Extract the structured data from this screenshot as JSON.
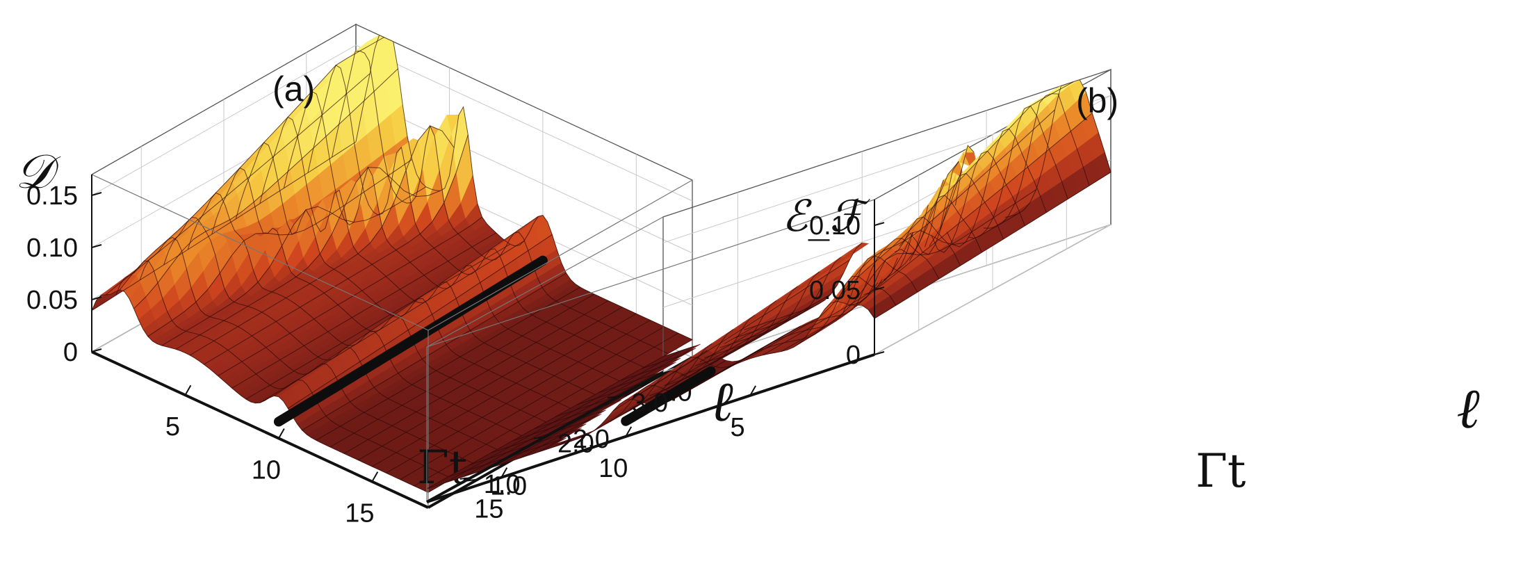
{
  "chart_data": [
    {
      "type": "surface3d",
      "panel": "(a)",
      "zlabel": "𝒟",
      "xlabel": "Γt",
      "ylabel": "ℓ",
      "x_ticks": [
        "5",
        "10",
        "15"
      ],
      "x_tick_values": [
        5,
        10,
        15
      ],
      "y_ticks": [
        "1.0",
        "2.0",
        "3.0"
      ],
      "y_tick_values": [
        1.0,
        2.0,
        3.0
      ],
      "z_ticks": [
        "0",
        "0.05",
        "0.10",
        "0.15"
      ],
      "z_tick_values": [
        0,
        0.05,
        0.1,
        0.15
      ],
      "xlim": [
        0,
        18
      ],
      "ylim": [
        0.4,
        3.6
      ],
      "zlim": [
        0,
        0.17
      ],
      "peak_value": 0.17,
      "highlight_line_x": 10,
      "gaps": false,
      "colormap": [
        "#5a1414",
        "#9a2a1c",
        "#d0461e",
        "#ec8a2a",
        "#f6cf45",
        "#fbf06e"
      ]
    },
    {
      "type": "surface3d",
      "panel": "(b)",
      "zlabel": "ℰ_ℱ",
      "xlabel": "Γt",
      "ylabel": "ℓ",
      "x_ticks": [
        "5",
        "10",
        "15"
      ],
      "x_tick_values": [
        5,
        10,
        15
      ],
      "y_ticks": [
        "1.0",
        "2.0",
        "3.0"
      ],
      "y_tick_values": [
        1.0,
        2.0,
        3.0
      ],
      "z_ticks": [
        "0",
        "0.05",
        "0.10"
      ],
      "z_tick_values": [
        0,
        0.05,
        0.1
      ],
      "xlim": [
        0,
        18
      ],
      "ylim": [
        0.4,
        3.6
      ],
      "zlim": [
        0,
        0.12
      ],
      "peak_value": 0.12,
      "highlight_line_x": 10,
      "gaps": true,
      "colormap": [
        "#5a1414",
        "#9a2a1c",
        "#d0461e",
        "#ec8a2a",
        "#f6cf45",
        "#fbf06e"
      ]
    }
  ]
}
